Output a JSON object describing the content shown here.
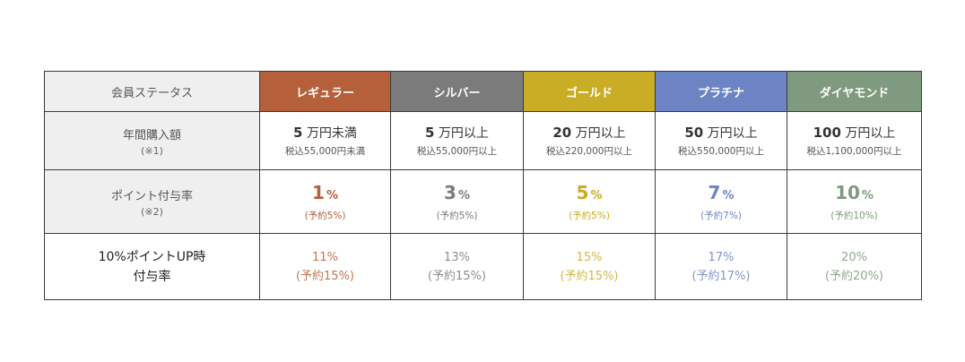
{
  "labels": {
    "status": "会員ステータス",
    "annual": "年間購入額",
    "annual_note": "(※1)",
    "rate": "ポイント付与率",
    "rate_note": "(※2)",
    "up_line1": "10%ポイントUP時",
    "up_line2": "付与率"
  },
  "tiers": [
    {
      "name": "レギュラー",
      "color": "#b5603a",
      "annual_main": "5",
      "annual_unit": "万円未満",
      "annual_sub": "税込55,000円未満",
      "rate": "1",
      "rate_sub": "(予約5%)",
      "up_rate": "11%",
      "up_sub": "(予約15%)"
    },
    {
      "name": "シルバー",
      "color": "#7b7b7b",
      "annual_main": "5",
      "annual_unit": "万円以上",
      "annual_sub": "税込55,000円以上",
      "rate": "3",
      "rate_sub": "(予約5%)",
      "up_rate": "13%",
      "up_sub": "(予約15%)"
    },
    {
      "name": "ゴールド",
      "color": "#c9ad24",
      "annual_main": "20",
      "annual_unit": "万円以上",
      "annual_sub": "税込220,000円以上",
      "rate": "5",
      "rate_sub": "(予約5%)",
      "up_rate": "15%",
      "up_sub": "(予約15%)"
    },
    {
      "name": "プラチナ",
      "color": "#6d84c4",
      "annual_main": "50",
      "annual_unit": "万円以上",
      "annual_sub": "税込550,000円以上",
      "rate": "7",
      "rate_sub": "(予約7%)",
      "up_rate": "17%",
      "up_sub": "(予約17%)"
    },
    {
      "name": "ダイヤモンド",
      "color": "#7f9a7e",
      "annual_main": "100",
      "annual_unit": "万円以上",
      "annual_sub": "税込1,100,000円以上",
      "rate": "10",
      "rate_sub": "(予約10%)",
      "up_rate": "20%",
      "up_sub": "(予約20%)"
    }
  ],
  "pct_symbol": "%"
}
